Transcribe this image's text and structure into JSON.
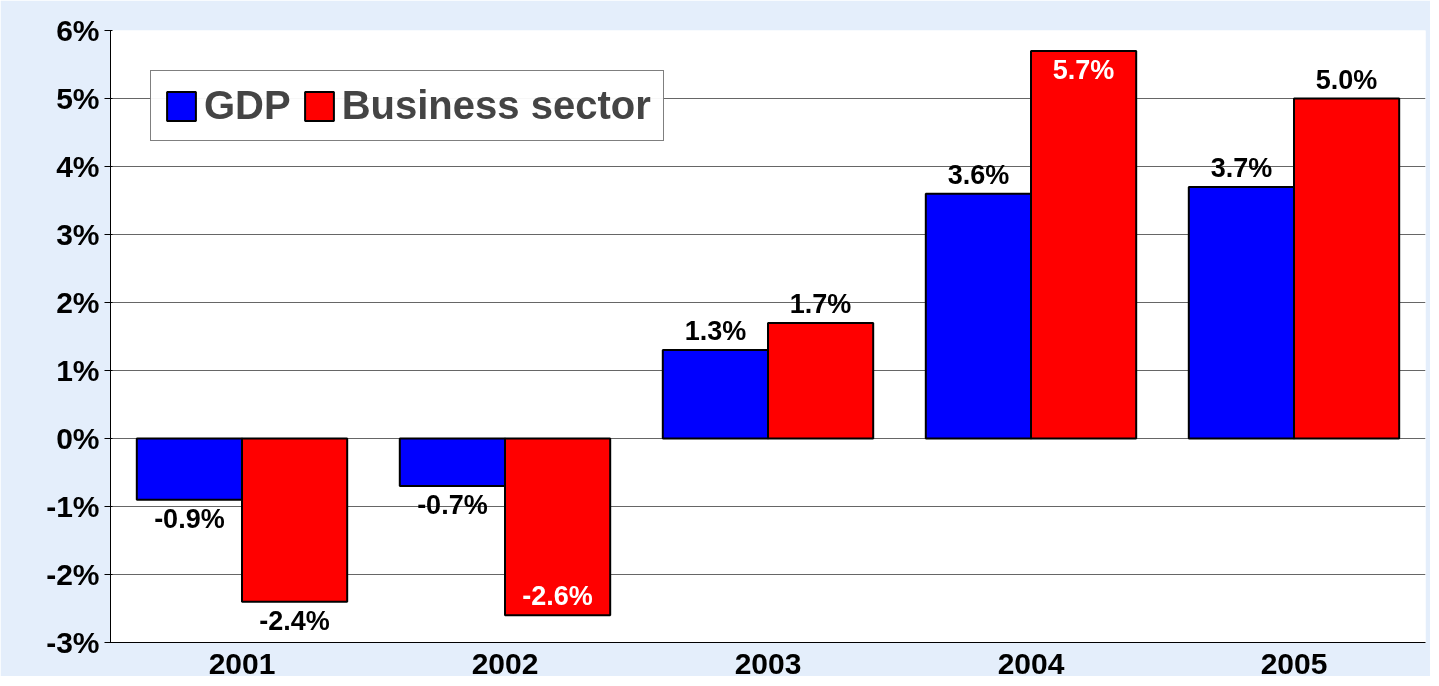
{
  "chart_data": {
    "type": "bar",
    "categories": [
      "2001",
      "2002",
      "2003",
      "2004",
      "2005"
    ],
    "series": [
      {
        "name": "GDP",
        "color": "#0000ff",
        "values": [
          -0.9,
          -0.7,
          1.3,
          3.6,
          3.7
        ]
      },
      {
        "name": "Business sector",
        "color": "#ff0000",
        "values": [
          -2.4,
          -2.6,
          1.7,
          5.7,
          5.0
        ]
      }
    ],
    "ylim": [
      -3,
      6
    ],
    "yticks": [
      {
        "value": -3,
        "label": "-3%"
      },
      {
        "value": -2,
        "label": "-2%"
      },
      {
        "value": -1,
        "label": "-1%"
      },
      {
        "value": 0,
        "label": "0%"
      },
      {
        "value": 1,
        "label": "1%"
      },
      {
        "value": 2,
        "label": "2%"
      },
      {
        "value": 3,
        "label": "3%"
      },
      {
        "value": 4,
        "label": "4%"
      },
      {
        "value": 5,
        "label": "5%"
      },
      {
        "value": 6,
        "label": "6%"
      }
    ],
    "value_labels": [
      [
        "-0.9%",
        "-0.7%",
        "1.3%",
        "3.6%",
        "3.7%"
      ],
      [
        "-2.4%",
        "-2.6%",
        "1.7%",
        "5.7%",
        "5.0%"
      ]
    ],
    "grid": "y",
    "legend": "top left"
  }
}
